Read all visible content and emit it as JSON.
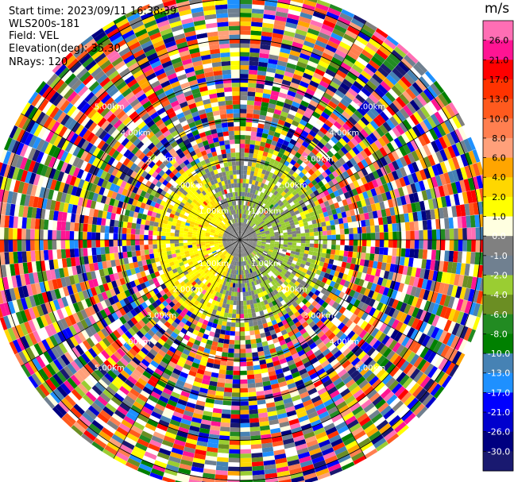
{
  "header": {
    "start_time": "Start time: 2023/09/11 16:38:39",
    "instrument": "WLS200s-181",
    "field": "Field: VEL",
    "elevation": "Elevation(deg): 35.30",
    "nrays": "NRays: 120"
  },
  "chart_data": {
    "type": "heatmap",
    "projection": "polar",
    "nrays": 120,
    "range_rings_km": [
      1,
      2,
      3,
      4,
      5,
      6
    ],
    "max_range_km": 6.3,
    "ring_labels": [
      "1.00km",
      "2.00km",
      "3.00km",
      "4.00km",
      "5.00km"
    ],
    "colorbar": {
      "unit": "m/s",
      "tick_labels": [
        "26.0",
        "21.0",
        "17.0",
        "13.0",
        "10.0",
        "8.0",
        "6.0",
        "4.0",
        "2.0",
        "1.0",
        "0.0",
        "-1.0",
        "-2.0",
        "-4.0",
        "-6.0",
        "-8.0",
        "-10.0",
        "-13.0",
        "-17.0",
        "-21.0",
        "-26.0",
        "-30.0"
      ],
      "colors": [
        "#ff6eb4",
        "#ff1493",
        "#ff0000",
        "#ff3300",
        "#ff5a1e",
        "#ff7f50",
        "#ffa07a",
        "#ffa500",
        "#ffd700",
        "#ffff00",
        "#ffffe0",
        "#808080",
        "#708090",
        "#9acd32",
        "#6b8e23",
        "#228b22",
        "#008000",
        "#4682b4",
        "#1e90ff",
        "#0000ff",
        "#0000cd",
        "#000080",
        "#191970"
      ]
    },
    "color_zones": [
      {
        "range_km": [
          0,
          0.4
        ],
        "description": "near-zero velocity (gray)"
      },
      {
        "range_km": [
          0.4,
          2.2
        ],
        "description": "weak radial velocity, yellow/gray/green pattern"
      },
      {
        "range_km": [
          2.2,
          6.3
        ],
        "description": "noise, all colors"
      }
    ]
  },
  "colors": {
    "background": "#ffffff",
    "rings": "#000000",
    "ring_labels": "#ffffff"
  }
}
